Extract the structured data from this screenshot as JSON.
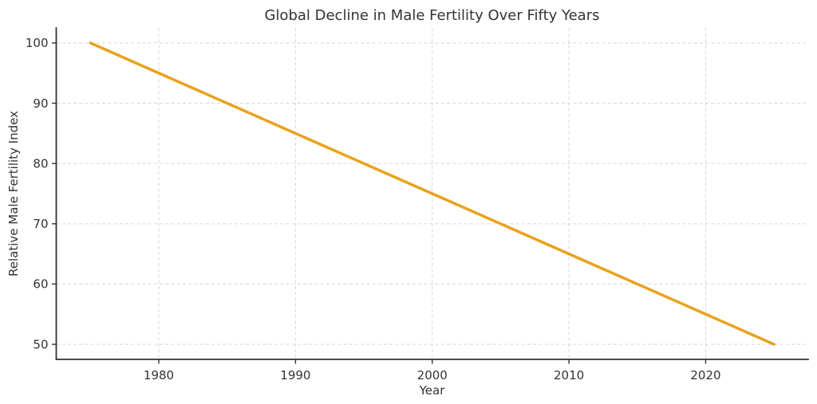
{
  "figure": {
    "background": "#ffffff"
  },
  "chart_data": {
    "type": "line",
    "title": "Global Decline in Male Fertility Over Fifty Years",
    "xlabel": "Year",
    "ylabel": "Relative Male Fertility Index",
    "x": [
      1975,
      1980,
      1985,
      1990,
      1995,
      2000,
      2005,
      2010,
      2015,
      2020,
      2025
    ],
    "series": [
      {
        "name": "Relative Male Fertility Index",
        "values": [
          100,
          95,
          90,
          85,
          80,
          75,
          70,
          65,
          60,
          55,
          50
        ],
        "color": "#E8A21C",
        "line_width": 3.5
      }
    ],
    "xticks": [
      1980,
      1990,
      2000,
      2010,
      2020
    ],
    "yticks": [
      50,
      60,
      70,
      80,
      90,
      100
    ],
    "xlim": [
      1972.5,
      2027.5
    ],
    "ylim": [
      47.5,
      102.5
    ],
    "grid": true,
    "grid_style": "dashed",
    "grid_color": "#d7d7d7",
    "axis_color": "#333333",
    "text_color": "#333333",
    "legend": "none"
  }
}
